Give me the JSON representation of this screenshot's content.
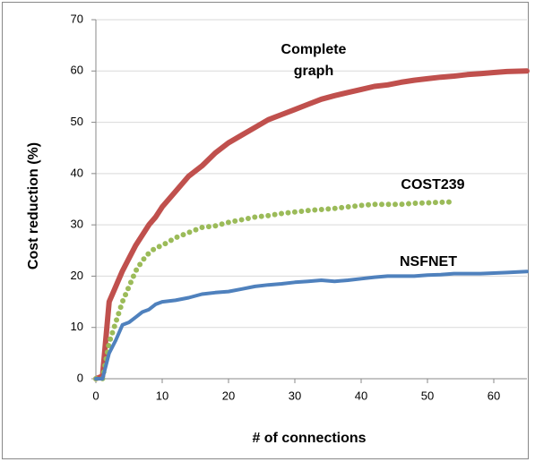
{
  "chart_data": {
    "type": "line",
    "x_label": "# of connections",
    "y_label": "Cost reduction (%)",
    "x": [
      0,
      1,
      2,
      3,
      4,
      5,
      6,
      7,
      8,
      9,
      10,
      12,
      14,
      16,
      18,
      20,
      22,
      24,
      26,
      28,
      30,
      32,
      34,
      36,
      38,
      40,
      42,
      44,
      46,
      48,
      50,
      52,
      54,
      56,
      58,
      60,
      62,
      65
    ],
    "series": [
      {
        "name": "Complete graph",
        "color": "#c0504d",
        "style": "solid",
        "values": [
          0,
          0.5,
          15,
          18,
          21,
          23.5,
          26,
          28,
          30,
          31.5,
          33.5,
          36.5,
          39.5,
          41.5,
          44,
          46,
          47.5,
          49,
          50.5,
          51.5,
          52.5,
          53.5,
          54.5,
          55.2,
          55.8,
          56.4,
          57,
          57.3,
          57.8,
          58.2,
          58.5,
          58.8,
          59,
          59.3,
          59.5,
          59.7,
          59.9,
          60
        ]
      },
      {
        "name": "COST239",
        "color": "#9bbb59",
        "style": "dotted",
        "values": [
          0,
          0,
          7,
          11,
          15,
          18,
          21,
          23,
          24.5,
          25.5,
          26,
          27.5,
          28.5,
          29.5,
          29.8,
          30.5,
          31,
          31.5,
          31.8,
          32.2,
          32.5,
          32.8,
          33,
          33.2,
          33.5,
          33.8,
          34,
          34,
          34,
          34.2,
          34.3,
          34.4,
          34.5,
          null,
          null,
          null,
          null,
          null
        ]
      },
      {
        "name": "NSFNET",
        "color": "#4f81bd",
        "style": "solid",
        "values": [
          0,
          0,
          5,
          7.5,
          10.5,
          11,
          12,
          13,
          13.5,
          14.5,
          15,
          15.3,
          15.8,
          16.5,
          16.8,
          17,
          17.5,
          18,
          18.3,
          18.5,
          18.8,
          19,
          19.2,
          19,
          19.2,
          19.5,
          19.8,
          20,
          20,
          20,
          20.2,
          20.3,
          20.5,
          20.5,
          20.5,
          20.6,
          20.7,
          20.9
        ]
      }
    ],
    "xlim": [
      0,
      65
    ],
    "xticks": [
      0,
      10,
      20,
      30,
      40,
      50,
      60
    ],
    "ylim": [
      0,
      70
    ],
    "yticks": [
      0,
      10,
      20,
      30,
      40,
      50,
      60,
      70
    ],
    "grid": true
  }
}
